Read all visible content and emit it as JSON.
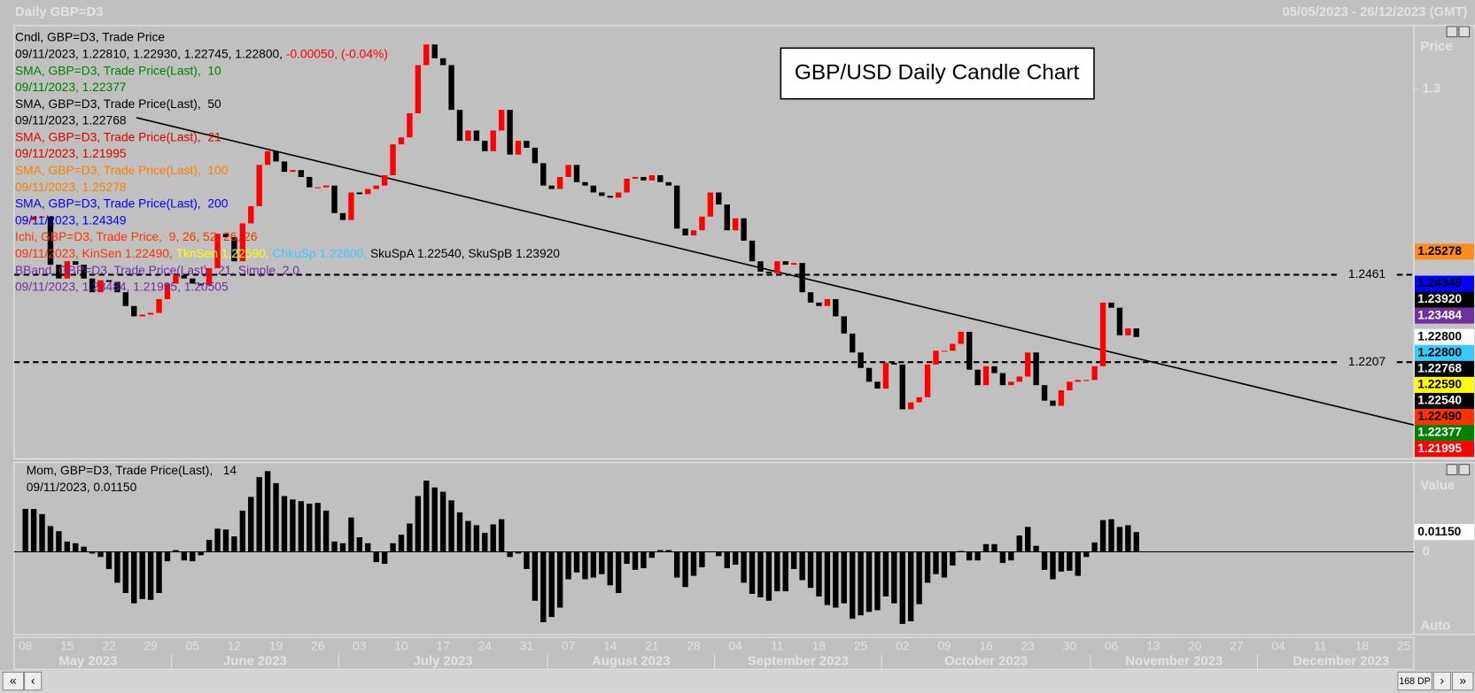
{
  "chart_data": [
    {
      "type": "candlestick",
      "title": "GBP/USD Daily Candle Chart",
      "header_left": "Daily GBP=D3",
      "header_right": "05/05/2023 - 26/12/2023 (GMT)",
      "axis_label": "Price",
      "up_color": "#ff0000",
      "down_color": "#000000",
      "ylim": [
        1.1926,
        1.3185
      ],
      "yticks": [
        1.3
      ],
      "levels": [
        1.2461,
        1.2207
      ],
      "x_ticks": [
        "08",
        "15",
        "22",
        "29",
        "05",
        "12",
        "19",
        "26",
        "03",
        "10",
        "17",
        "24",
        "31",
        "07",
        "14",
        "21",
        "28",
        "04",
        "11",
        "18",
        "25",
        "02",
        "09",
        "16",
        "23",
        "30",
        "06",
        "13",
        "20",
        "27",
        "04",
        "11",
        "18",
        "25"
      ],
      "months": [
        "May 2023",
        "June 2023",
        "July 2023",
        "August 2023",
        "September 2023",
        "October 2023",
        "November 2023",
        "December 2023"
      ],
      "close": [
        1.262,
        1.263,
        1.263,
        1.249,
        1.245,
        1.25,
        1.249,
        1.245,
        1.241,
        1.2445,
        1.244,
        1.241,
        1.237,
        1.234,
        1.2345,
        1.235,
        1.239,
        1.2435,
        1.246,
        1.245,
        1.2435,
        1.243,
        1.248,
        1.258,
        1.257,
        1.25,
        1.261,
        1.266,
        1.278,
        1.282,
        1.279,
        1.276,
        1.2765,
        1.2745,
        1.2715,
        1.2715,
        1.272,
        1.264,
        1.262,
        1.27,
        1.2695,
        1.271,
        1.272,
        1.275,
        1.284,
        1.286,
        1.293,
        1.307,
        1.313,
        1.309,
        1.307,
        1.294,
        1.285,
        1.288,
        1.285,
        1.282,
        1.288,
        1.294,
        1.281,
        1.285,
        1.283,
        1.2785,
        1.272,
        1.271,
        1.2745,
        1.278,
        1.273,
        1.272,
        1.27,
        1.269,
        1.2685,
        1.27,
        1.274,
        1.2745,
        1.2735,
        1.275,
        1.273,
        1.272,
        1.2595,
        1.2575,
        1.259,
        1.263,
        1.27,
        1.2665,
        1.259,
        1.2625,
        1.256,
        1.25,
        1.247,
        1.2465,
        1.25,
        1.249,
        1.2495,
        1.241,
        1.238,
        1.237,
        1.239,
        1.234,
        1.229,
        1.2235,
        1.219,
        1.215,
        1.213,
        1.2205,
        1.22,
        1.207,
        1.209,
        1.2105,
        1.22,
        1.224,
        1.224,
        1.226,
        1.2295,
        1.2185,
        1.214,
        1.2195,
        1.2175,
        1.214,
        1.215,
        1.2165,
        1.2235,
        1.214,
        1.2095,
        1.208,
        1.2125,
        1.215,
        1.2155,
        1.2155,
        1.2195,
        1.238,
        1.2365,
        1.2285,
        1.2305,
        1.228
      ],
      "price_tags": [
        {
          "value": 1.25278,
          "label": "1.25278",
          "color": "#ff8c1a",
          "text_color": "#000000"
        },
        {
          "value": 1.24349,
          "label": "1.24349",
          "color": "#0000ff",
          "text_color": "#000000"
        },
        {
          "value": 1.2392,
          "label": "1.23920",
          "color": "#000000",
          "text_color": "#ffffff"
        },
        {
          "value": 1.23484,
          "label": "1.23484",
          "color": "#7030a0",
          "text_color": "#ffffff"
        },
        {
          "value": 1.228,
          "label": "1.22800",
          "color": "#ffffff",
          "text_color": "#000000"
        },
        {
          "value": 1.228,
          "label": "1.22800",
          "color": "#33ccff",
          "text_color": "#000000"
        },
        {
          "value": 1.22768,
          "label": "1.22768",
          "color": "#000000",
          "text_color": "#ffffff"
        },
        {
          "value": 1.2259,
          "label": "1.22590",
          "color": "#ffff00",
          "text_color": "#000000"
        },
        {
          "value": 1.2254,
          "label": "1.22540",
          "color": "#000000",
          "text_color": "#ffffff"
        },
        {
          "value": 1.2249,
          "label": "1.22490",
          "color": "#ff3300",
          "text_color": "#000000"
        },
        {
          "value": 1.22377,
          "label": "1.22377",
          "color": "#008000",
          "text_color": "#ffffff"
        },
        {
          "value": 1.21995,
          "label": "1.21995",
          "color": "#ff0000",
          "text_color": "#ffffff"
        }
      ],
      "legend": [
        [
          {
            "text": "Cndl, GBP=D3, Trade Price",
            "color": "#000000"
          }
        ],
        [
          {
            "text": "09/11/2023, 1.22810, 1.22930, 1.22745, 1.22800, ",
            "color": "#000000"
          },
          {
            "text": "-0.00050, (-0.04%)",
            "color": "#ff0000"
          }
        ],
        [
          {
            "text": "SMA, GBP=D3, Trade Price(Last),  10",
            "color": "#008000"
          }
        ],
        [
          {
            "text": "09/11/2023, 1.22377",
            "color": "#008000"
          }
        ],
        [
          {
            "text": "SMA, GBP=D3, Trade Price(Last),  50",
            "color": "#000000"
          }
        ],
        [
          {
            "text": "09/11/2023, 1.22768",
            "color": "#000000"
          }
        ],
        [
          {
            "text": "SMA, GBP=D3, Trade Price(Last),  21",
            "color": "#e00000"
          }
        ],
        [
          {
            "text": "09/11/2023, 1.21995",
            "color": "#e00000"
          }
        ],
        [
          {
            "text": "SMA, GBP=D3, Trade Price(Last),  100",
            "color": "#ff8000"
          }
        ],
        [
          {
            "text": "09/11/2023, 1.25278",
            "color": "#ff8000"
          }
        ],
        [
          {
            "text": "SMA, GBP=D3, Trade Price(Last),  200",
            "color": "#0000ee"
          }
        ],
        [
          {
            "text": "09/11/2023, 1.24349",
            "color": "#0000ee"
          }
        ],
        [
          {
            "text": "Ichi, GBP=D3, Trade Price,  9, 26, 52, 26, 26",
            "color": "#ff3300"
          }
        ],
        [
          {
            "text": "09/11/2023, KinSen 1.22490, ",
            "color": "#ff3300"
          },
          {
            "text": "TknSen 1.22590, ",
            "color": "#ffff00"
          },
          {
            "text": "ChkuSp 1.22800, ",
            "color": "#33ccff"
          },
          {
            "text": "SkuSpA 1.22540, SkuSpB 1.23920",
            "color": "#000000"
          }
        ],
        [
          {
            "text": "BBand, GBP=D3, Trade Price(Last),  21, Simple, 2.0",
            "color": "#7030a0"
          }
        ],
        [
          {
            "text": "09/11/2023, 1.23484, 1.21995, 1.20505",
            "color": "#7030a0"
          }
        ]
      ]
    },
    {
      "type": "bar",
      "axis_label": "Value",
      "scale_label": "Auto",
      "color": "#000000",
      "ylim": [
        -0.0482,
        0.052
      ],
      "yticks": [
        0
      ],
      "price_tag": {
        "value": 0.0115,
        "label": "0.01150"
      },
      "legend": [
        [
          {
            "text": "Mom, GBP=D3, Trade Price(Last),   14",
            "color": "#000000"
          }
        ],
        [
          {
            "text": "09/11/2023, 0.01150",
            "color": "#000000"
          }
        ]
      ],
      "values": [
        0.025,
        0.025,
        0.022,
        0.015,
        0.012,
        0.006,
        0.005,
        0.003,
        -0.001,
        -0.003,
        -0.01,
        -0.018,
        -0.024,
        -0.03,
        -0.0275,
        -0.028,
        -0.024,
        -0.0055,
        0.001,
        -0.005,
        -0.0055,
        -0.002,
        0.007,
        0.0135,
        0.013,
        0.009,
        0.024,
        0.032,
        0.0435,
        0.047,
        0.04,
        0.0325,
        0.0305,
        0.0295,
        0.028,
        0.0285,
        0.024,
        0.006,
        0.005,
        0.02,
        0.0085,
        0.005,
        -0.006,
        -0.007,
        0.005,
        0.01,
        0.0165,
        0.0325,
        0.0415,
        0.0375,
        0.035,
        0.03,
        0.023,
        0.018,
        0.0155,
        0.011,
        0.016,
        0.019,
        -0.003,
        -0.001,
        -0.01,
        -0.0285,
        -0.041,
        -0.038,
        -0.0325,
        -0.016,
        -0.012,
        -0.016,
        -0.015,
        -0.013,
        -0.0195,
        -0.024,
        -0.007,
        -0.0105,
        -0.0095,
        -0.0035,
        0.001,
        0.001,
        -0.015,
        -0.0205,
        -0.014,
        -0.009,
        0,
        -0.0025,
        -0.0095,
        -0.0075,
        -0.018,
        -0.0245,
        -0.0265,
        -0.0285,
        -0.023,
        -0.023,
        -0.01,
        -0.0165,
        -0.021,
        -0.026,
        -0.031,
        -0.0325,
        -0.03,
        -0.039,
        -0.037,
        -0.035,
        -0.034,
        -0.026,
        -0.03,
        -0.042,
        -0.0405,
        -0.0305,
        -0.018,
        -0.013,
        -0.015,
        -0.008,
        0.0005,
        -0.005,
        -0.005,
        0.0045,
        0.0045,
        -0.0065,
        -0.005,
        0.0095,
        0.0145,
        0.0035,
        -0.0105,
        -0.016,
        -0.0115,
        -0.011,
        -0.014,
        -0.003,
        0.0055,
        0.0185,
        0.019,
        0.0145,
        0.0155,
        0.0115
      ]
    }
  ],
  "ui": {
    "points": "168 DP"
  }
}
